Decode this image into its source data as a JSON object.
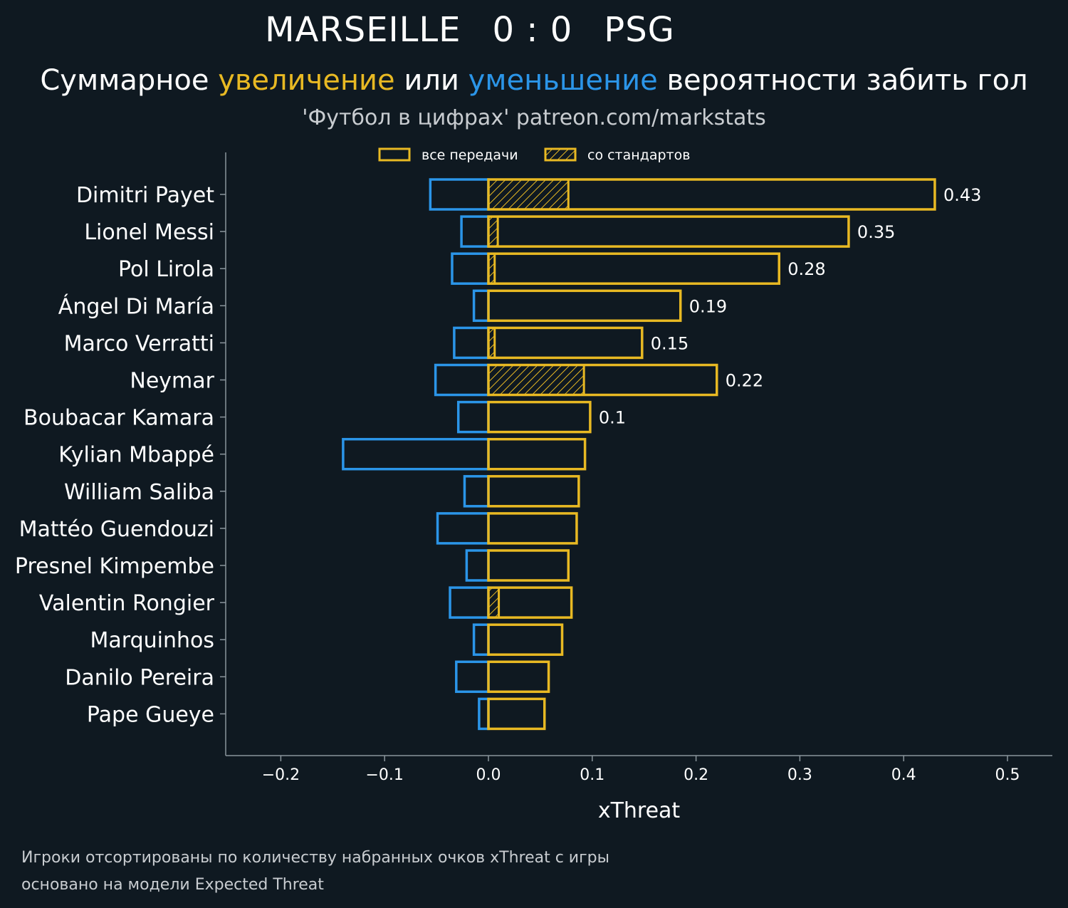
{
  "header": {
    "home_team": "MARSEILLE",
    "score": "0 : 0",
    "away_team": "PSG",
    "subtitle_part1": "Суммарное ",
    "subtitle_increase": "увеличение",
    "subtitle_part2": " или ",
    "subtitle_decrease": "уменьшение",
    "subtitle_part3": " вероятности забить гол",
    "source": "'Футбол в цифрах' patreon.com/markstats"
  },
  "footnote": {
    "line1": "Игроки отсортированы по количеству набранных очков xThreat с игры",
    "line2": "основано на модели Expected Threat"
  },
  "colors": {
    "background": "#0f1921",
    "increase": "#e8b923",
    "decrease": "#2b95e8",
    "axis": "#8a959c",
    "text": "#ffffff"
  },
  "chart_data": {
    "type": "bar",
    "orientation": "horizontal",
    "xlabel": "xThreat",
    "xlim": [
      -0.255,
      0.545
    ],
    "xticks": [
      -0.2,
      -0.1,
      0.0,
      0.1,
      0.2,
      0.3,
      0.4,
      0.5
    ],
    "xtick_labels": [
      "−0.2",
      "−0.1",
      "0.0",
      "0.1",
      "0.2",
      "0.3",
      "0.4",
      "0.5"
    ],
    "grid": false,
    "legend_position": "top-center",
    "legend": [
      "все передачи",
      "со стандартов"
    ],
    "categories": [
      "Dimitri Payet",
      "Lionel Messi",
      "Pol Lirola",
      "Ángel Di María",
      "Marco Verratti",
      "Neymar",
      "Boubacar Kamara",
      "Kylian Mbappé",
      "William Saliba",
      "Mattéo Guendouzi",
      "Presnel Kimpembe",
      "Valentin Rongier",
      "Marquinhos",
      "Danilo Pereira",
      "Pape Gueye"
    ],
    "series": [
      {
        "name": "все передачи",
        "values": [
          0.43,
          0.347,
          0.28,
          0.185,
          0.148,
          0.22,
          0.098,
          0.093,
          0.087,
          0.085,
          0.077,
          0.08,
          0.071,
          0.058,
          0.054
        ]
      },
      {
        "name": "со стандартов",
        "values": [
          0.077,
          0.009,
          0.006,
          0.0,
          0.006,
          0.092,
          0.0,
          0.0,
          0.0,
          0.0,
          0.0,
          0.01,
          0.0,
          0.0,
          0.0
        ]
      },
      {
        "values": [
          -0.056,
          -0.026,
          -0.035,
          -0.014,
          -0.033,
          -0.051,
          -0.029,
          -0.14,
          -0.023,
          -0.049,
          -0.021,
          -0.037,
          -0.014,
          -0.031,
          -0.009
        ]
      }
    ],
    "value_labels": [
      "0.43",
      "0.35",
      "0.28",
      "0.19",
      "0.15",
      "0.22",
      "0.1",
      "",
      "",
      "",
      "",
      "",
      "",
      "",
      ""
    ]
  }
}
